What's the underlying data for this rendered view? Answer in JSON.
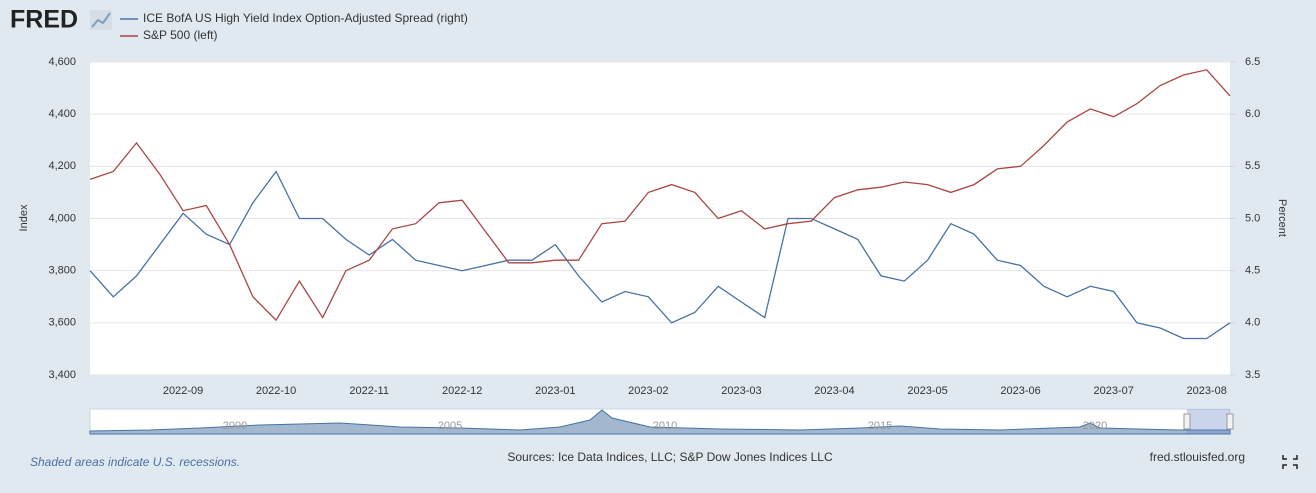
{
  "chart_data": {
    "type": "line",
    "logo": "FRED",
    "ylabel": "Index",
    "y2label": "Percent",
    "categories": [
      null,
      null,
      null,
      null,
      "2022-09",
      null,
      null,
      null,
      "2022-10",
      null,
      null,
      null,
      "2022-11",
      null,
      null,
      null,
      "2022-12",
      null,
      null,
      null,
      "2023-01",
      null,
      null,
      null,
      "2023-02",
      null,
      null,
      null,
      "2023-03",
      null,
      null,
      null,
      "2023-04",
      null,
      null,
      null,
      "2023-05",
      null,
      null,
      null,
      "2023-06",
      null,
      null,
      null,
      "2023-07",
      null,
      null,
      null,
      "2023-08",
      null
    ],
    "series": [
      {
        "name": "ICE BofA US High Yield Index Option-Adjusted Spread (right)",
        "color": "#4572a7",
        "axis": "y2",
        "values": [
          4.5,
          4.25,
          4.45,
          4.75,
          5.05,
          4.85,
          4.75,
          5.15,
          5.45,
          5.0,
          5.0,
          4.8,
          4.65,
          4.8,
          4.6,
          4.55,
          4.5,
          4.55,
          4.6,
          4.6,
          4.75,
          4.45,
          4.2,
          4.3,
          4.25,
          4.0,
          4.1,
          4.35,
          4.2,
          4.05,
          5.0,
          5.0,
          4.9,
          4.8,
          4.45,
          4.4,
          4.6,
          4.95,
          4.85,
          4.6,
          4.55,
          4.35,
          4.25,
          4.35,
          4.3,
          4.0,
          3.95,
          3.85,
          3.85,
          4.0
        ]
      },
      {
        "name": "S&P 500 (left)",
        "color": "#aa4643",
        "values": [
          4150,
          4180,
          4290,
          4170,
          4030,
          4050,
          3900,
          3700,
          3610,
          3760,
          3620,
          3800,
          3840,
          3960,
          3980,
          4060,
          4070,
          3950,
          3830,
          3830,
          3840,
          3840,
          3980,
          3990,
          4100,
          4130,
          4100,
          4000,
          4030,
          3960,
          3980,
          3990,
          4080,
          4110,
          4120,
          4140,
          4130,
          4100,
          4130,
          4190,
          4200,
          4280,
          4370,
          4420,
          4390,
          4440,
          4510,
          4550,
          4570,
          4470
        ]
      }
    ],
    "ylim": [
      3400,
      4600
    ],
    "yticks": [
      {
        "value": 3400,
        "label": "3,400"
      },
      {
        "value": 3600,
        "label": "3,600"
      },
      {
        "value": 3800,
        "label": "3,800"
      },
      {
        "value": 4000,
        "label": "4,000"
      },
      {
        "value": 4200,
        "label": "4,200"
      },
      {
        "value": 4400,
        "label": "4,400"
      },
      {
        "value": 4600,
        "label": "4,600"
      }
    ],
    "y2lim": [
      3.5,
      6.5
    ],
    "y2ticks": [
      3.5,
      {
        "value": 4,
        "label": "4.0"
      },
      4.5,
      {
        "value": 5,
        "label": "5.0"
      },
      5.5,
      {
        "value": 6,
        "label": "6.0"
      },
      6.5
    ],
    "grid": true,
    "navigator_labels": [
      "2000",
      "2005",
      "2010",
      "2015",
      "2020"
    ],
    "recession_note": "Shaded areas indicate U.S. recessions.",
    "source": "Sources: Ice Data Indices, LLC; S&P Dow Jones Indices LLC",
    "site": "fred.stlouisfed.org"
  }
}
